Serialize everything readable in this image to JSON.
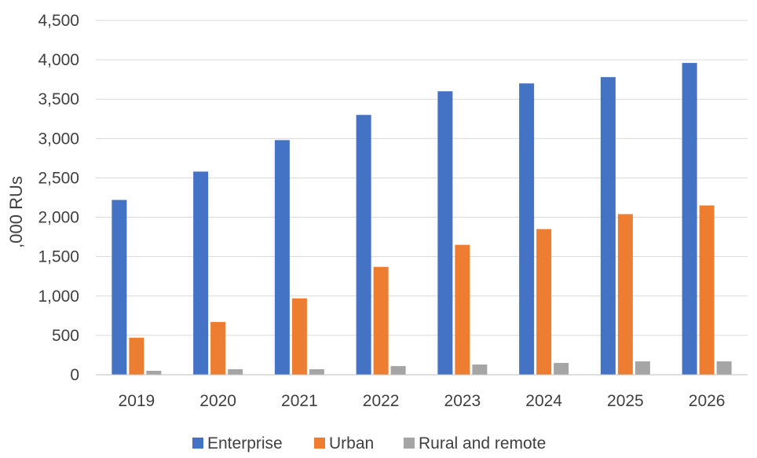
{
  "chart_data": {
    "type": "bar",
    "title": "",
    "xlabel": "",
    "ylabel": ",000 RUs",
    "ylim": [
      0,
      4500
    ],
    "yticks": [
      0,
      500,
      1000,
      1500,
      2000,
      2500,
      3000,
      3500,
      4000,
      4500
    ],
    "ytick_labels": [
      "0",
      "500",
      "1,000",
      "1,500",
      "2,000",
      "2,500",
      "3,000",
      "3,500",
      "4,000",
      "4,500"
    ],
    "grid": true,
    "legend_position": "bottom",
    "categories": [
      "2019",
      "2020",
      "2021",
      "2022",
      "2023",
      "2024",
      "2025",
      "2026"
    ],
    "series": [
      {
        "name": "Enterprise",
        "color": "#4472C4",
        "values": [
          2220,
          2580,
          2980,
          3300,
          3600,
          3700,
          3780,
          3960
        ]
      },
      {
        "name": "Urban",
        "color": "#ED7D31",
        "values": [
          470,
          670,
          970,
          1370,
          1650,
          1850,
          2040,
          2150
        ]
      },
      {
        "name": "Rural and remote",
        "color": "#A5A5A5",
        "values": [
          50,
          70,
          70,
          110,
          130,
          150,
          170,
          170
        ]
      }
    ]
  }
}
